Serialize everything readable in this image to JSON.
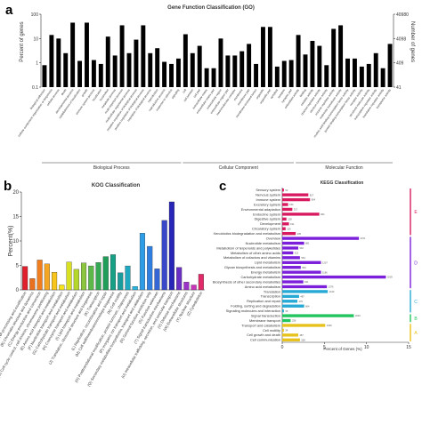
{
  "panels": {
    "a": {
      "letter": "a"
    },
    "b": {
      "letter": "b"
    },
    "c": {
      "letter": "c"
    }
  },
  "chart_data": [
    {
      "id": "a",
      "type": "bar",
      "scale": "log",
      "title": "Gene Function Classification (GO)",
      "ylabel": "Percent of genes",
      "ylabel_right": "Number of genes",
      "ylim": [
        0.1,
        100
      ],
      "yticks": [
        "100",
        "10",
        "1",
        "0.1"
      ],
      "yticks_right": [
        "40980",
        "4098",
        "409",
        "41"
      ],
      "grid": false,
      "groups": [
        {
          "name": "Biological Process",
          "from": 0,
          "to": 19
        },
        {
          "name": "Cellular Component",
          "from": 20,
          "to": 35
        },
        {
          "name": "Molecular Function",
          "from": 36,
          "to": 49
        }
      ],
      "categories": [
        "biological adhesion",
        "cellular component organization or biogenesis",
        "cellular process",
        "death",
        "developmental process",
        "establishment of localization",
        "growth",
        "immune system process",
        "localization",
        "locomotion",
        "metabolic process",
        "multi-organism process",
        "multicellular organismal process",
        "negative regulation of biological process",
        "positive regulation of biological process",
        "regulation of biological process",
        "reproduction",
        "reproductive process",
        "response to stimulus",
        "signaling",
        "cell",
        "cell junction",
        "cell part",
        "extracellular matrix",
        "extracellular matrix part",
        "extracellular region",
        "extracellular region part",
        "macromolecular complex",
        "membrane",
        "membrane part",
        "membrane-enclosed lumen",
        "organelle",
        "organelle part",
        "symplast",
        "synapse",
        "synapse part",
        "antioxidant activity",
        "binding",
        "catalytic activity",
        "channel regulator activity",
        "electron carrier activity",
        "enzyme regulator activity",
        "molecular transducer activity",
        "nucleic acid binding transcription factor activity",
        "protein binding transcription factor activity",
        "receptor activity",
        "structural molecule activity",
        "transcription regulator activity",
        "translation regulator activity",
        "transporter activity"
      ],
      "values": [
        0.8,
        14,
        10,
        2.5,
        45,
        1.2,
        45,
        1.3,
        0.9,
        12,
        2,
        35,
        2.5,
        9,
        35,
        2.5,
        4,
        1.1,
        0.9,
        1.5,
        15,
        2.5,
        5,
        0.6,
        0.6,
        10,
        2,
        2,
        3,
        6,
        0.9,
        30,
        30,
        0.7,
        1.2,
        1.3,
        14,
        2.2,
        8,
        5,
        0.8,
        25,
        35,
        1.5,
        1.5,
        0.7,
        0.9,
        2.5,
        0.6,
        6
      ]
    },
    {
      "id": "b",
      "type": "bar",
      "title": "KOG Classification",
      "ylabel": "Percent(%)",
      "ylim": [
        0,
        20
      ],
      "yticks": [
        0,
        5,
        10,
        15,
        20
      ],
      "grid": false,
      "categories": [
        "(A) RNA processing and modification",
        "(B) Chromatin structure and dynamics",
        "(C) Energy production and conversion",
        "(D) Cell cycle control, cell division, chromosome partitioning",
        "(E) Amino acid transport and metabolism",
        "(F) Nucleotide transport and metabolism",
        "(G) Carbohydrate transport and metabolism",
        "(H) Coenzyme transport and metabolism",
        "(I) Lipid transport and metabolism",
        "(J) Translation, ribosomal structure and biogenesis",
        "(K) Transcription",
        "(L) Replication, recombination and repair",
        "(M) Cell wall/membrane/envelope biogenesis",
        "(N) Cell motility",
        "(O) Posttranslational modification, protein turnover, chaperones",
        "(P) Inorganic ion transport and metabolism",
        "(Q) Secondary metabolites biosynthesis, transport and catabolism",
        "(R) General function prediction only",
        "(S) Function unknown",
        "(T) Signal transduction mechanisms",
        "(U) Intracellular trafficking, secretion, and vesicular transport",
        "(V) Defense mechanisms",
        "(W) Extracellular structures",
        "(Y) Nuclear structure",
        "(Z) Cytoskeleton"
      ],
      "values": [
        4.8,
        2.3,
        6.1,
        5.3,
        3.6,
        1.0,
        5.7,
        4.2,
        5.5,
        4.9,
        5.6,
        6.8,
        7.2,
        3.5,
        4.9,
        0.7,
        11.6,
        8.9,
        4.3,
        14.2,
        18.0,
        4.6,
        1.6,
        1.0,
        3.2
      ],
      "colors": [
        "#e0202c",
        "#e8701e",
        "#f07d1e",
        "#f5a623",
        "#f8c51c",
        "#f4e21c",
        "#d9e021",
        "#b5d62b",
        "#8cc63f",
        "#5cb848",
        "#34a853",
        "#1e9e58",
        "#16a085",
        "#1a9c9c",
        "#1fa8c0",
        "#26b5e0",
        "#2e9de8",
        "#2f7fe0",
        "#3466d6",
        "#3948c9",
        "#2826b8",
        "#6a2fc4",
        "#9b32c7",
        "#c935b8",
        "#e02a6a"
      ]
    },
    {
      "id": "c",
      "type": "bar",
      "orientation": "horizontal",
      "title": "KEGG Classification",
      "xlabel": "Percent of Genes (%)",
      "xlim": [
        0,
        15
      ],
      "xticks": [
        0,
        5,
        10,
        15
      ],
      "grid": false,
      "categories": [
        "Sensory system",
        "Nervous system",
        "Immune system",
        "Excretory system",
        "Environmental adaptation",
        "Endocrine system",
        "Digestive system",
        "Development",
        "Circulatory system",
        "Xenobiotics biodegradation and metabolism",
        "Overview",
        "Nucleotide metabolism",
        "Metabolism of terpenoids and polyketides",
        "Metabolism of other amino acids",
        "Metabolism of cofactors and vitamins",
        "Lipid metabolism",
        "Glycan biosynthesis and metabolism",
        "Energy metabolism",
        "Carbohydrate metabolism",
        "Biosynthesis of other secondary metabolites",
        "Amino acid metabolism",
        "Translation",
        "Transcription",
        "Replication and repair",
        "Folding, sorting and degradation",
        "Signaling molecules and interaction",
        "Signal transduction",
        "Membrane transport",
        "Transport and catabolism",
        "Cell motility",
        "Cell growth and death",
        "Cell communication"
      ],
      "values": [
        0.2,
        3.1,
        3.3,
        0.7,
        1.2,
        4.4,
        0.5,
        0.8,
        0.4,
        1.6,
        9.1,
        2.6,
        1.9,
        1.3,
        2.1,
        4.6,
        2.2,
        4.6,
        12.3,
        2.5,
        5.3,
        5.4,
        2.0,
        1.8,
        2.6,
        0.2,
        8.5,
        1.0,
        5.1,
        0.2,
        1.9,
        2.1
      ],
      "value_labels": [
        "52",
        "817",
        "804",
        "154",
        "317",
        "964",
        "128",
        "191",
        "106",
        "405",
        "2371",
        "681",
        "502",
        "322",
        "554",
        "1207",
        "564",
        "1196",
        "3203",
        "641",
        "1376",
        "1410",
        "487",
        "479",
        "664",
        "35",
        "2224",
        "236",
        "1329",
        "34",
        "487",
        "559"
      ],
      "groups": [
        {
          "label": "E",
          "from": 0,
          "to": 9,
          "color": "#d81b60"
        },
        {
          "label": "D",
          "from": 10,
          "to": 20,
          "color": "#7b1fdb"
        },
        {
          "label": "C",
          "from": 21,
          "to": 25,
          "color": "#26a9d4"
        },
        {
          "label": "B",
          "from": 26,
          "to": 27,
          "color": "#22c55e"
        },
        {
          "label": "A",
          "from": 28,
          "to": 31,
          "color": "#e8c21c"
        }
      ]
    }
  ]
}
